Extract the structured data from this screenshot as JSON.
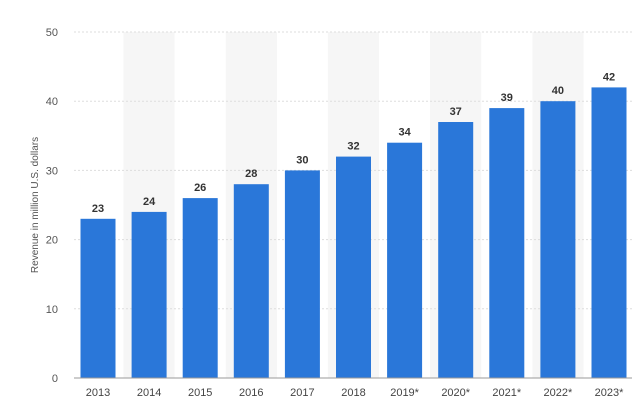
{
  "chart_data": {
    "type": "bar",
    "categories": [
      "2013",
      "2014",
      "2015",
      "2016",
      "2017",
      "2018",
      "2019*",
      "2020*",
      "2021*",
      "2022*",
      "2023*"
    ],
    "values": [
      23,
      24,
      26,
      28,
      30,
      32,
      34,
      37,
      39,
      40,
      42
    ],
    "data_labels": [
      "23",
      "24",
      "26",
      "28",
      "30",
      "32",
      "34",
      "37",
      "39",
      "40",
      "42"
    ],
    "title": "",
    "xlabel": "",
    "ylabel": "Revenue in million U.S. dollars",
    "ylim": [
      0,
      50
    ],
    "yticks": [
      "0",
      "10",
      "20",
      "30",
      "40",
      "50"
    ],
    "grid": true,
    "bar_color": "#2a77d9",
    "band_color": "#f6f6f6"
  }
}
